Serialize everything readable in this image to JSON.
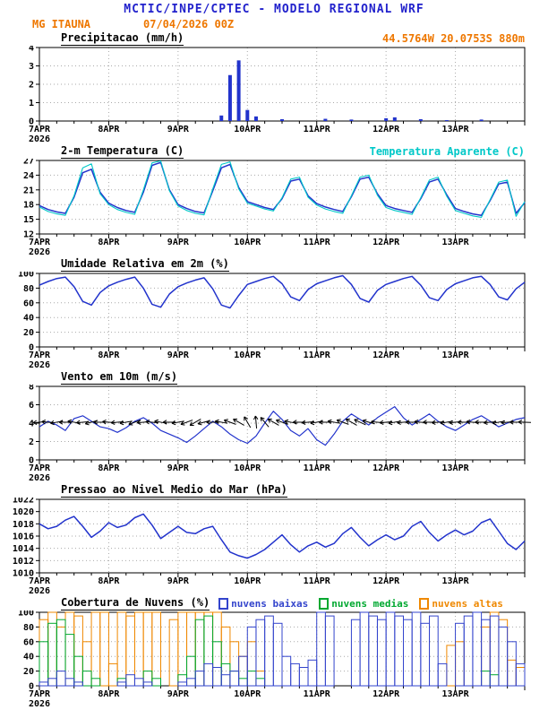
{
  "header": {
    "title": "MCTIC/INPE/CPTEC - MODELO REGIONAL WRF",
    "station": "MG ITAUNA",
    "run": "07/04/2026 00Z",
    "location": "44.5764W 20.0753S 880m"
  },
  "colors": {
    "header_blue": "#2222cc",
    "orange_text": "#ee7700",
    "line_blue": "#2233cc",
    "cyan": "#00c8c8",
    "precip": "#2233cc",
    "cloud_low": "#3344cc",
    "cloud_mid": "#00a830",
    "cloud_high": "#ef8800",
    "grid": "#aaaaaa"
  },
  "x_axis": {
    "labels": [
      "7APR",
      "8APR",
      "9APR",
      "10APR",
      "11APR",
      "12APR",
      "13APR"
    ],
    "year": "2026",
    "hours_span": 168,
    "step_hours": 3,
    "label_hours": [
      0,
      24,
      48,
      72,
      96,
      120,
      144
    ]
  },
  "chart_data": [
    {
      "type": "bar",
      "title": "Precipitacao (mm/h)",
      "ylim": [
        0,
        4
      ],
      "yticks": [
        0,
        1,
        2,
        3,
        4
      ],
      "values": [
        0,
        0,
        0,
        0,
        0,
        0,
        0,
        0,
        0,
        0,
        0,
        0,
        0,
        0,
        0,
        0,
        0,
        0,
        0,
        0,
        0,
        0.3,
        2.5,
        3.3,
        0.6,
        0.25,
        0,
        0,
        0.1,
        0,
        0,
        0,
        0,
        0.12,
        0,
        0,
        0.08,
        0,
        0,
        0,
        0.15,
        0.2,
        0,
        0,
        0.1,
        0,
        0,
        0.05,
        0,
        0,
        0,
        0.08,
        0,
        0,
        0,
        0,
        0
      ]
    },
    {
      "type": "line",
      "title": "2-m Temperatura (C)",
      "right_label": "Temperatura Aparente (C)",
      "ylim": [
        12,
        27
      ],
      "yticks": [
        12,
        15,
        18,
        21,
        24,
        27
      ],
      "series": [
        {
          "name": "2-m Temperatura (C)",
          "color": "line_blue",
          "values": [
            17.8,
            17.0,
            16.5,
            16.2,
            19.5,
            24.5,
            25.2,
            20.5,
            18.3,
            17.4,
            16.8,
            16.4,
            20.5,
            26.0,
            26.6,
            21.0,
            18.0,
            17.2,
            16.6,
            16.3,
            20.8,
            25.5,
            26.2,
            21.5,
            18.6,
            18.0,
            17.4,
            17.0,
            19.2,
            22.8,
            23.2,
            19.8,
            18.2,
            17.5,
            17.0,
            16.6,
            19.6,
            23.2,
            23.6,
            20.2,
            17.8,
            17.2,
            16.8,
            16.4,
            19.2,
            22.6,
            23.2,
            20.0,
            17.2,
            16.6,
            16.1,
            15.8,
            18.8,
            22.2,
            22.6,
            16.2,
            18.4
          ]
        },
        {
          "name": "Temperatura Aparente (C)",
          "color": "cyan",
          "values": [
            17.5,
            16.6,
            16.1,
            15.8,
            19.8,
            25.5,
            26.3,
            20.2,
            18.0,
            17.0,
            16.4,
            16.0,
            21.0,
            26.5,
            26.9,
            20.8,
            17.7,
            16.8,
            16.2,
            15.9,
            21.2,
            26.2,
            26.7,
            21.2,
            18.3,
            17.7,
            17.1,
            16.7,
            19.4,
            23.2,
            23.6,
            19.5,
            17.9,
            17.1,
            16.6,
            16.2,
            19.8,
            23.6,
            24.0,
            19.9,
            17.4,
            16.8,
            16.4,
            16.0,
            19.4,
            23.0,
            23.6,
            19.7,
            16.8,
            16.2,
            15.7,
            15.4,
            19.0,
            22.6,
            23.0,
            15.6,
            18.6
          ]
        }
      ]
    },
    {
      "type": "line",
      "title": "Umidade Relativa em 2m (%)",
      "ylim": [
        0,
        100
      ],
      "yticks": [
        0,
        20,
        40,
        60,
        80,
        100
      ],
      "series": [
        {
          "name": "Umidade Relativa em 2m (%)",
          "color": "line_blue",
          "values": [
            84,
            89,
            93,
            95,
            82,
            62,
            57,
            74,
            83,
            88,
            92,
            95,
            80,
            58,
            54,
            72,
            82,
            87,
            91,
            94,
            79,
            57,
            53,
            70,
            85,
            89,
            93,
            96,
            86,
            68,
            63,
            78,
            86,
            90,
            94,
            97,
            85,
            66,
            61,
            77,
            85,
            89,
            93,
            96,
            84,
            67,
            63,
            78,
            86,
            90,
            94,
            96,
            85,
            68,
            64,
            79,
            88
          ]
        }
      ]
    },
    {
      "type": "wind",
      "title": "Vento em 10m (m/s)",
      "ylim": [
        0,
        8
      ],
      "yticks": [
        0,
        2,
        4,
        6,
        8
      ],
      "arrow_level": 4.1,
      "values": [
        3.6,
        4.2,
        3.8,
        3.2,
        4.5,
        4.8,
        4.2,
        3.6,
        3.4,
        3.0,
        3.5,
        4.2,
        4.6,
        4.0,
        3.2,
        2.8,
        2.4,
        1.9,
        2.6,
        3.4,
        4.2,
        3.6,
        2.8,
        2.2,
        1.8,
        2.6,
        4.0,
        5.3,
        4.4,
        3.2,
        2.6,
        3.4,
        2.2,
        1.6,
        2.8,
        4.2,
        5.0,
        4.4,
        3.8,
        4.6,
        5.2,
        5.8,
        4.6,
        3.8,
        4.4,
        5.0,
        4.2,
        3.6,
        3.2,
        3.8,
        4.4,
        4.8,
        4.2,
        3.6,
        4.0,
        4.4,
        4.6
      ],
      "directions": [
        185,
        175,
        190,
        180,
        170,
        185,
        195,
        180,
        175,
        185,
        190,
        200,
        185,
        175,
        170,
        180,
        190,
        200,
        210,
        195,
        180,
        170,
        160,
        150,
        120,
        95,
        130,
        150,
        160,
        170,
        180,
        185,
        190,
        180,
        170,
        160,
        150,
        155,
        165,
        175,
        185,
        190,
        185,
        180,
        175,
        180,
        185,
        190,
        185,
        180,
        175,
        180,
        185,
        190,
        185,
        180,
        178
      ]
    },
    {
      "type": "line",
      "title": "Pressao ao Nivel Medio do Mar (hPa)",
      "ylim": [
        1010,
        1022
      ],
      "yticks": [
        1010,
        1012,
        1014,
        1016,
        1018,
        1020,
        1022
      ],
      "series": [
        {
          "name": "Pressao ao Nivel Medio do Mar (hPa)",
          "color": "line_blue",
          "values": [
            1018.0,
            1017.2,
            1017.6,
            1018.6,
            1019.2,
            1017.6,
            1015.8,
            1016.8,
            1018.2,
            1017.4,
            1017.8,
            1019.0,
            1019.6,
            1017.8,
            1015.6,
            1016.6,
            1017.6,
            1016.6,
            1016.4,
            1017.2,
            1017.6,
            1015.4,
            1013.4,
            1012.8,
            1012.4,
            1013.0,
            1013.8,
            1015.0,
            1016.2,
            1014.6,
            1013.4,
            1014.4,
            1015.0,
            1014.2,
            1014.8,
            1016.4,
            1017.4,
            1015.8,
            1014.4,
            1015.4,
            1016.2,
            1015.4,
            1016.0,
            1017.6,
            1018.4,
            1016.6,
            1015.2,
            1016.2,
            1017.0,
            1016.2,
            1016.8,
            1018.2,
            1018.8,
            1016.8,
            1014.8,
            1013.8,
            1015.2
          ]
        }
      ]
    },
    {
      "type": "cloud",
      "title": "Cobertura de Nuvens (%)",
      "ylim": [
        0,
        100
      ],
      "yticks": [
        0,
        20,
        40,
        60,
        80,
        100
      ],
      "legend": [
        {
          "label": "nuvens baixas",
          "color": "cloud_low"
        },
        {
          "label": "nuvens medias",
          "color": "cloud_mid"
        },
        {
          "label": "nuvens altas",
          "color": "cloud_high"
        }
      ],
      "series": [
        {
          "name": "nuvens altas",
          "color": "cloud_high",
          "values": [
            90,
            100,
            80,
            100,
            95,
            60,
            100,
            100,
            30,
            100,
            95,
            100,
            100,
            100,
            0,
            90,
            100,
            100,
            100,
            100,
            100,
            80,
            60,
            40,
            60,
            20,
            0,
            0,
            0,
            0,
            0,
            0,
            0,
            0,
            0,
            0,
            0,
            0,
            0,
            0,
            0,
            0,
            0,
            0,
            0,
            0,
            0,
            55,
            60,
            0,
            0,
            80,
            100,
            90,
            35,
            25,
            40
          ]
        },
        {
          "name": "nuvens medias",
          "color": "cloud_mid",
          "values": [
            60,
            85,
            90,
            70,
            40,
            20,
            10,
            0,
            0,
            10,
            0,
            0,
            20,
            10,
            0,
            0,
            15,
            40,
            90,
            95,
            60,
            30,
            20,
            10,
            20,
            10,
            0,
            0,
            0,
            0,
            0,
            0,
            0,
            0,
            0,
            0,
            0,
            0,
            0,
            0,
            0,
            0,
            0,
            0,
            0,
            0,
            0,
            0,
            0,
            0,
            0,
            20,
            15,
            0,
            0,
            0,
            0
          ]
        },
        {
          "name": "nuvens baixas",
          "color": "cloud_low",
          "values": [
            5,
            10,
            20,
            10,
            5,
            0,
            0,
            0,
            0,
            5,
            15,
            10,
            5,
            0,
            0,
            0,
            5,
            10,
            20,
            30,
            25,
            15,
            20,
            40,
            80,
            90,
            95,
            85,
            40,
            30,
            25,
            35,
            100,
            95,
            0,
            0,
            90,
            100,
            95,
            90,
            100,
            95,
            90,
            100,
            85,
            95,
            30,
            0,
            85,
            95,
            100,
            90,
            95,
            80,
            60,
            30,
            15
          ]
        }
      ]
    }
  ]
}
